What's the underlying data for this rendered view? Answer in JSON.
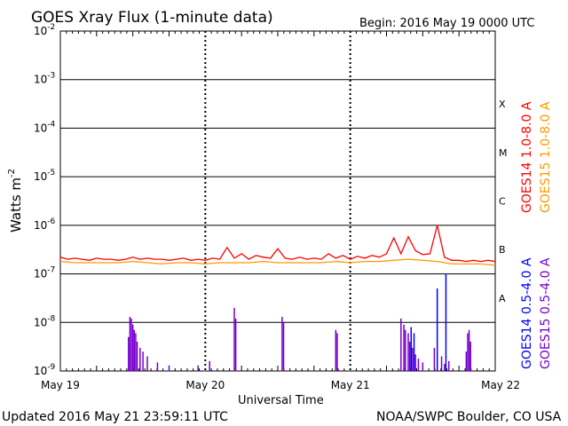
{
  "header": {
    "title": "GOES Xray Flux (1-minute data)",
    "begin_label": "Begin:  2016 May 19 0000 UTC"
  },
  "footer": {
    "updated": "Updated 2016 May 21 23:59:11 UTC",
    "credit": "NOAA/SWPC Boulder, CO USA"
  },
  "chart_data": {
    "type": "line",
    "title": "GOES Xray Flux (1-minute data)",
    "xlabel": "Universal Time",
    "ylabel": "Watts m",
    "ylabel_sup": "-2",
    "yscale": "log",
    "ylim": [
      1e-09,
      0.01
    ],
    "xlim": [
      "2016-05-19",
      "2016-05-22"
    ],
    "x_ticks": [
      "May 19",
      "May 20",
      "May 21",
      "May 22"
    ],
    "y_ticks": [
      {
        "base": "10",
        "exp": "-2",
        "value": 0.01
      },
      {
        "base": "10",
        "exp": "-3",
        "value": 0.001
      },
      {
        "base": "10",
        "exp": "-4",
        "value": 0.0001
      },
      {
        "base": "10",
        "exp": "-5",
        "value": 1e-05
      },
      {
        "base": "10",
        "exp": "-6",
        "value": 1e-06
      },
      {
        "base": "10",
        "exp": "-7",
        "value": 1e-07
      },
      {
        "base": "10",
        "exp": "-8",
        "value": 1e-08
      },
      {
        "base": "10",
        "exp": "-9",
        "value": 1e-09
      }
    ],
    "flare_classes": [
      {
        "label": "X",
        "value": 0.000316
      },
      {
        "label": "M",
        "value": 3.16e-05
      },
      {
        "label": "C",
        "value": 3.16e-06
      },
      {
        "label": "B",
        "value": 3.16e-07
      },
      {
        "label": "A",
        "value": 3.16e-08
      }
    ],
    "grid": true,
    "legend_right": [
      {
        "name": "GOES14 1.0-8.0 A",
        "color": "#ff0000"
      },
      {
        "name": "GOES15 1.0-8.0 A",
        "color": "#ff9900"
      }
    ],
    "legend_left": [
      {
        "name": "GOES14 0.5-4.0 A",
        "color": "#0000ff"
      },
      {
        "name": "GOES15 0.5-4.0 A",
        "color": "#7700cc"
      }
    ],
    "series": [
      {
        "name": "GOES14 1.0-8.0 A",
        "color": "#ff0000",
        "x_days": [
          0,
          0.05,
          0.1,
          0.15,
          0.2,
          0.25,
          0.3,
          0.35,
          0.4,
          0.45,
          0.5,
          0.55,
          0.6,
          0.65,
          0.7,
          0.75,
          0.8,
          0.85,
          0.9,
          0.95,
          1.0,
          1.05,
          1.1,
          1.15,
          1.2,
          1.25,
          1.3,
          1.35,
          1.4,
          1.45,
          1.5,
          1.55,
          1.6,
          1.65,
          1.7,
          1.75,
          1.8,
          1.85,
          1.9,
          1.95,
          2.0,
          2.05,
          2.1,
          2.15,
          2.2,
          2.25,
          2.3,
          2.35,
          2.4,
          2.45,
          2.5,
          2.55,
          2.6,
          2.65,
          2.7,
          2.75,
          2.8,
          2.85,
          2.9,
          2.95,
          3.0
        ],
        "values": [
          2.2e-07,
          2e-07,
          2.1e-07,
          2e-07,
          1.9e-07,
          2.1e-07,
          2e-07,
          2e-07,
          1.9e-07,
          2e-07,
          2.2e-07,
          2e-07,
          2.1e-07,
          2e-07,
          2e-07,
          1.9e-07,
          2e-07,
          2.1e-07,
          1.9e-07,
          2e-07,
          1.9e-07,
          2.1e-07,
          2e-07,
          3.5e-07,
          2.1e-07,
          2.6e-07,
          2e-07,
          2.4e-07,
          2.2e-07,
          2.1e-07,
          3.3e-07,
          2.1e-07,
          2e-07,
          2.2e-07,
          2e-07,
          2.1e-07,
          2e-07,
          2.6e-07,
          2.1e-07,
          2.4e-07,
          2e-07,
          2.3e-07,
          2.1e-07,
          2.4e-07,
          2.2e-07,
          2.6e-07,
          5.5e-07,
          2.6e-07,
          5.8e-07,
          3e-07,
          2.5e-07,
          2.6e-07,
          1e-06,
          2.2e-07,
          1.9e-07,
          1.9e-07,
          1.8e-07,
          1.9e-07,
          1.8e-07,
          1.9e-07,
          1.8e-07
        ]
      },
      {
        "name": "GOES15 1.0-8.0 A",
        "color": "#ff9900",
        "x_days": [
          0,
          0.1,
          0.2,
          0.3,
          0.4,
          0.5,
          0.6,
          0.7,
          0.8,
          0.9,
          1.0,
          1.1,
          1.2,
          1.3,
          1.4,
          1.5,
          1.6,
          1.7,
          1.8,
          1.9,
          2.0,
          2.1,
          2.2,
          2.3,
          2.4,
          2.5,
          2.6,
          2.7,
          2.8,
          2.9,
          3.0
        ],
        "values": [
          1.8e-07,
          1.7e-07,
          1.7e-07,
          1.7e-07,
          1.7e-07,
          1.8e-07,
          1.7e-07,
          1.6e-07,
          1.7e-07,
          1.7e-07,
          1.6e-07,
          1.7e-07,
          1.7e-07,
          1.7e-07,
          1.8e-07,
          1.7e-07,
          1.7e-07,
          1.7e-07,
          1.7e-07,
          1.8e-07,
          1.7e-07,
          1.8e-07,
          1.8e-07,
          1.9e-07,
          2e-07,
          1.9e-07,
          1.8e-07,
          1.6e-07,
          1.6e-07,
          1.6e-07,
          1.5e-07
        ]
      },
      {
        "name": "GOES14 0.5-4.0 A",
        "color": "#0000ff",
        "spikes_x_days": [
          2.42,
          2.44,
          2.6,
          2.66
        ],
        "spikes_values": [
          8e-09,
          6e-09,
          5e-08,
          1e-07
        ]
      },
      {
        "name": "GOES15 0.5-4.0 A",
        "color": "#7700cc",
        "spikes_x_days": [
          0.47,
          0.48,
          0.49,
          0.5,
          0.51,
          0.52,
          0.53,
          0.55,
          0.57,
          0.6,
          0.67,
          0.75,
          0.95,
          1.03,
          1.2,
          1.21,
          1.53,
          1.54,
          1.9,
          1.91,
          2.35,
          2.37,
          2.38,
          2.4,
          2.41,
          2.43,
          2.45,
          2.47,
          2.5,
          2.58,
          2.63,
          2.65,
          2.68,
          2.8,
          2.81,
          2.82,
          2.83
        ],
        "spikes_values": [
          5e-09,
          1.3e-08,
          1.2e-08,
          9e-09,
          7e-09,
          6e-09,
          4e-09,
          3e-09,
          2.5e-09,
          2e-09,
          1.5e-09,
          1.3e-09,
          1.3e-09,
          1.6e-09,
          2e-08,
          1.2e-08,
          1.3e-08,
          1e-08,
          7e-09,
          6e-09,
          1.2e-08,
          9e-09,
          7e-09,
          6e-09,
          4e-09,
          3e-09,
          2.2e-09,
          1.8e-09,
          1.5e-09,
          3e-09,
          2e-09,
          1.4e-09,
          1.6e-09,
          2.5e-09,
          6e-09,
          7e-09,
          4e-09
        ]
      }
    ]
  }
}
